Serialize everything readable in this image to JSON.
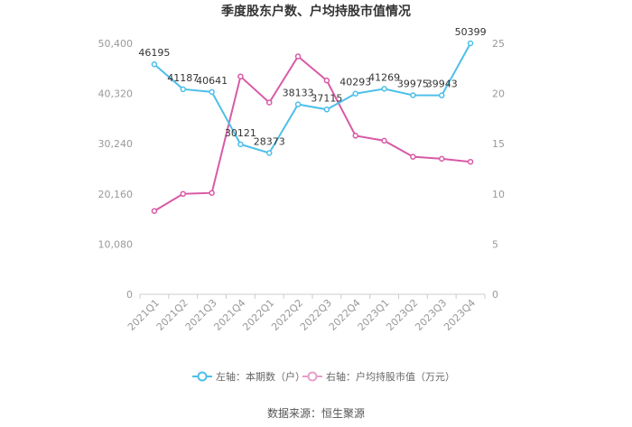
{
  "chart_data": {
    "type": "line",
    "title": "季度股东户数、户均持股市值情况",
    "categories": [
      "2021Q1",
      "2021Q2",
      "2021Q3",
      "2021Q4",
      "2022Q1",
      "2022Q2",
      "2022Q3",
      "2022Q4",
      "2023Q1",
      "2023Q2",
      "2023Q3",
      "2023Q4"
    ],
    "left_axis": {
      "ticks": [
        "0",
        "10,080",
        "20,160",
        "30,240",
        "40,320",
        "50,400"
      ],
      "min": 0,
      "max": 50400
    },
    "right_axis": {
      "ticks": [
        "0",
        "5",
        "10",
        "15",
        "20",
        "25"
      ],
      "min": 0,
      "max": 25
    },
    "series": [
      {
        "name": "左轴：本期数（户）",
        "axis": "left",
        "color": "#4DBFEA",
        "values": [
          46195,
          41187,
          40641,
          30121,
          28373,
          38133,
          37115,
          40293,
          41269,
          39975,
          39943,
          50399
        ],
        "labels": [
          "46195",
          "41187",
          "40641",
          "30121",
          "28373",
          "38133",
          "37115",
          "40293",
          "41269",
          "39975",
          "39943",
          "50399"
        ]
      },
      {
        "name": "右轴：户均持股市值（万元）",
        "axis": "right",
        "color": "#D85AA6",
        "values": [
          8.3,
          10.0,
          10.1,
          21.7,
          19.1,
          23.7,
          21.3,
          15.8,
          15.3,
          13.7,
          13.5,
          13.2
        ]
      }
    ],
    "grid": false,
    "legend_position": "bottom"
  },
  "source_text": "数据来源：恒生聚源"
}
